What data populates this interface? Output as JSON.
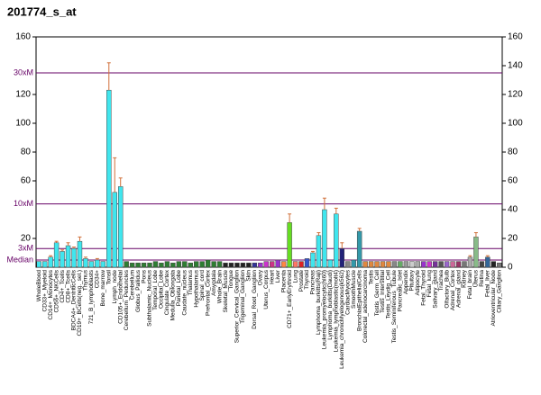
{
  "chart_data": {
    "type": "bar",
    "title": "201774_s_at",
    "categories": [
      "WholeBlood",
      "CD33+_Myeloid",
      "CD14+_Monocytes",
      "CD56+_NKCells",
      "CD4+_Tcells",
      "CD8+_Tcells",
      "BDCA4+_DentriticCells",
      "CD19+_BCells(neg._sel.)",
      "Thymus",
      "721_B_lymphoblasts",
      "CD34+",
      "Bone_marrow",
      "Tonsil",
      "Lymph_node",
      "CD105+_Endothelial",
      "Cerebellum_Peduncles",
      "Cerebellum",
      "Globus_Pallidus",
      "Pons",
      "Subthalamic_Nucleus",
      "Temporal_Lobe",
      "Occipital_Lobe",
      "Cingulate_Cortex",
      "Medulla_Oblongata",
      "Parietal_Lobe",
      "Caudate_nucleus",
      "Thalamus",
      "Hypothalamus",
      "Spinal_cord",
      "Prefrontal_Cortex",
      "Amygdala",
      "Whole_Brain",
      "Skeletal_Muscle",
      "Tongue",
      "Superior_Cervical_Ganglion",
      "Trigeminal_Ganglion",
      "Skin",
      "Dorsal_Root_Ganglion",
      "Ovary",
      "Uterus_Corpus",
      "Heart",
      "Liver",
      "Placenta",
      "CD71+_EarlyErythroid",
      "Lung",
      "Prostate",
      "Thyroid",
      "Pancreas",
      "Lymphoma_burkitts(Raji)",
      "Leukemia_promyelocytic(hl60)",
      "Lymphoma_burkitts(Daudi)",
      "Leukemia_lymphoblastic(molt4)",
      "Leukemia_chronicMyelogenous(k562)",
      "CardiacMyocytes",
      "SmoothMuscle",
      "BronchialEpithelialCells",
      "Colorectal_adenocarcinoma",
      "Testis",
      "Testis_Germ_Cell",
      "Testis_Interstitial",
      "Testis_Leydig_Cell",
      "Testis_Seminiferous_Tubule",
      "Pancreatic_Islet",
      "Appendix",
      "Pituitary",
      "Adipocyte",
      "Fetal_Thyroid",
      "Fetal_lung",
      "Salivary_gland",
      "Trachea",
      "Olfactory_Bulb",
      "Adrenal_Cortex",
      "Adrenal_gland",
      "Kidney",
      "Fetal_brain",
      "Uterus",
      "Retina",
      "Fetal_liver",
      "Atrioventricular_Node",
      "Ciliary_Ganglion"
    ],
    "values": [
      4,
      4,
      7,
      17,
      11,
      15,
      13,
      18,
      6,
      4,
      5,
      4,
      123,
      52,
      56,
      4,
      3,
      3,
      3,
      3,
      4,
      3,
      4,
      3,
      4,
      4,
      3,
      4,
      4,
      5,
      4,
      4,
      3,
      3,
      3,
      3,
      3,
      3,
      3,
      4,
      4,
      5,
      4,
      31,
      4,
      4,
      6,
      10,
      22,
      40,
      5,
      37,
      13,
      4,
      5,
      25,
      4,
      4,
      4,
      4,
      4,
      4,
      4,
      4,
      4,
      4,
      4,
      4,
      4,
      4,
      4,
      4,
      4,
      4,
      7,
      21,
      4,
      7,
      4,
      3
    ],
    "errors": [
      0,
      0,
      1,
      1,
      1,
      2,
      1,
      3,
      1,
      0,
      1,
      0,
      19,
      24,
      6,
      0,
      0,
      0,
      0,
      0,
      0,
      0,
      0,
      0,
      0,
      0,
      0,
      0,
      0,
      0,
      0,
      0,
      0,
      0,
      0,
      0,
      0,
      0,
      0,
      0,
      0,
      0,
      0,
      6,
      0,
      0,
      0,
      1,
      2,
      8,
      0,
      4,
      4,
      0,
      0,
      2,
      0,
      0,
      0,
      0,
      0,
      0,
      0,
      0,
      0,
      0,
      0,
      0,
      0,
      0,
      0,
      0,
      0,
      0,
      1,
      3,
      0,
      1,
      0,
      0
    ],
    "colors": [
      "#40e6ee",
      "#40e6ee",
      "#40e6ee",
      "#40e6ee",
      "#40e6ee",
      "#40e6ee",
      "#40e6ee",
      "#40e6ee",
      "#40e6ee",
      "#40e6ee",
      "#40e6ee",
      "#40e6ee",
      "#40e6ee",
      "#40e6ee",
      "#40e6ee",
      "#2e7d32",
      "#2e7d32",
      "#2e7d32",
      "#2e7d32",
      "#2e7d32",
      "#2e7d32",
      "#2e7d32",
      "#2e7d32",
      "#2e7d32",
      "#2e7d32",
      "#2e7d32",
      "#2e7d32",
      "#2e7d32",
      "#2e7d32",
      "#2e7d32",
      "#2e7d32",
      "#2e7d32",
      "#222222",
      "#222222",
      "#222222",
      "#222222",
      "#222222",
      "#333399",
      "#9933cc",
      "#cc33cc",
      "#cc3388",
      "#9933cc",
      "#ff8844",
      "#66dd22",
      "#ff7766",
      "#dd2222",
      "#3355cc",
      "#40e6ee",
      "#40e6ee",
      "#40e6ee",
      "#40e6ee",
      "#40e6ee",
      "#22227a",
      "#888888",
      "#3399aa",
      "#3399aa",
      "#e08840",
      "#e08840",
      "#e08840",
      "#e08840",
      "#e08840",
      "#888888",
      "#66aa66",
      "#999999",
      "#cccccc",
      "#aaaaaa",
      "#9933cc",
      "#cc33cc",
      "#773399",
      "#555555",
      "#9966cc",
      "#cc6699",
      "#993366",
      "#777777",
      "#aaaaaa",
      "#88bb88",
      "#444444",
      "#336699",
      "#222222",
      "#777777"
    ],
    "error_color": "#d0703a",
    "ylim": [
      0,
      160
    ],
    "yticks": [
      20,
      60,
      80,
      100,
      120,
      160
    ],
    "y2lim": [
      0,
      160
    ],
    "y2ticks": [
      0,
      20,
      40,
      60,
      80,
      100,
      120,
      140,
      160
    ],
    "reference_lines": [
      {
        "value": 135,
        "label": "30xM"
      },
      {
        "value": 44,
        "label": "10xM"
      },
      {
        "value": 13,
        "label": "3xM"
      },
      {
        "value": 5,
        "label": "Median"
      }
    ],
    "reference_color": "#660066"
  }
}
